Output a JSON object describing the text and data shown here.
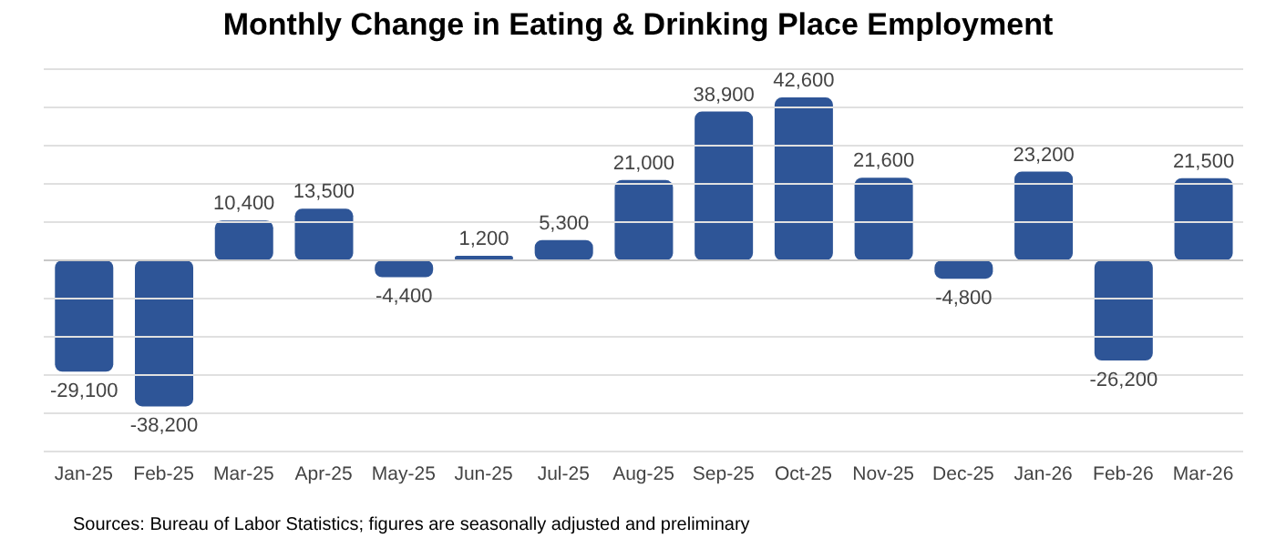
{
  "chart_data": {
    "type": "bar",
    "title": "Monthly Change in Eating & Drinking Place Employment",
    "categories": [
      "Jan-25",
      "Feb-25",
      "Mar-25",
      "Apr-25",
      "May-25",
      "Jun-25",
      "Jul-25",
      "Aug-25",
      "Sep-25",
      "Oct-25",
      "Nov-25",
      "Dec-25",
      "Jan-26",
      "Feb-26",
      "Mar-26"
    ],
    "values": [
      -29100,
      -38200,
      10400,
      13500,
      -4400,
      1200,
      5300,
      21000,
      38900,
      42600,
      21600,
      -4800,
      23200,
      -26200,
      21500
    ],
    "value_labels": [
      "-29,100",
      "-38,200",
      "10,400",
      "13,500",
      "-4,400",
      "1,200",
      "5,300",
      "21,000",
      "38,900",
      "42,600",
      "21,600",
      "-4,800",
      "23,200",
      "-26,200",
      "21,500"
    ],
    "color": "#2e5597",
    "ylim": [
      -50000,
      50000
    ],
    "yticks": [
      {
        "value": -50000,
        "label": null
      },
      {
        "value": -40000,
        "label": null
      },
      {
        "value": -30000,
        "label": null
      },
      {
        "value": -20000,
        "label": null
      },
      {
        "value": -10000,
        "label": null
      },
      {
        "value": 0,
        "label": null
      },
      {
        "value": 10000,
        "label": null
      },
      {
        "value": 20000,
        "label": null
      },
      {
        "value": 30000,
        "label": null
      },
      {
        "value": 40000,
        "label": null
      },
      {
        "value": 50000,
        "label": null
      }
    ],
    "tick_labels": "x",
    "grid": "y",
    "annotations": [
      "Sources: Bureau of Labor Statistics; figures are seasonally adjusted and preliminary"
    ]
  }
}
